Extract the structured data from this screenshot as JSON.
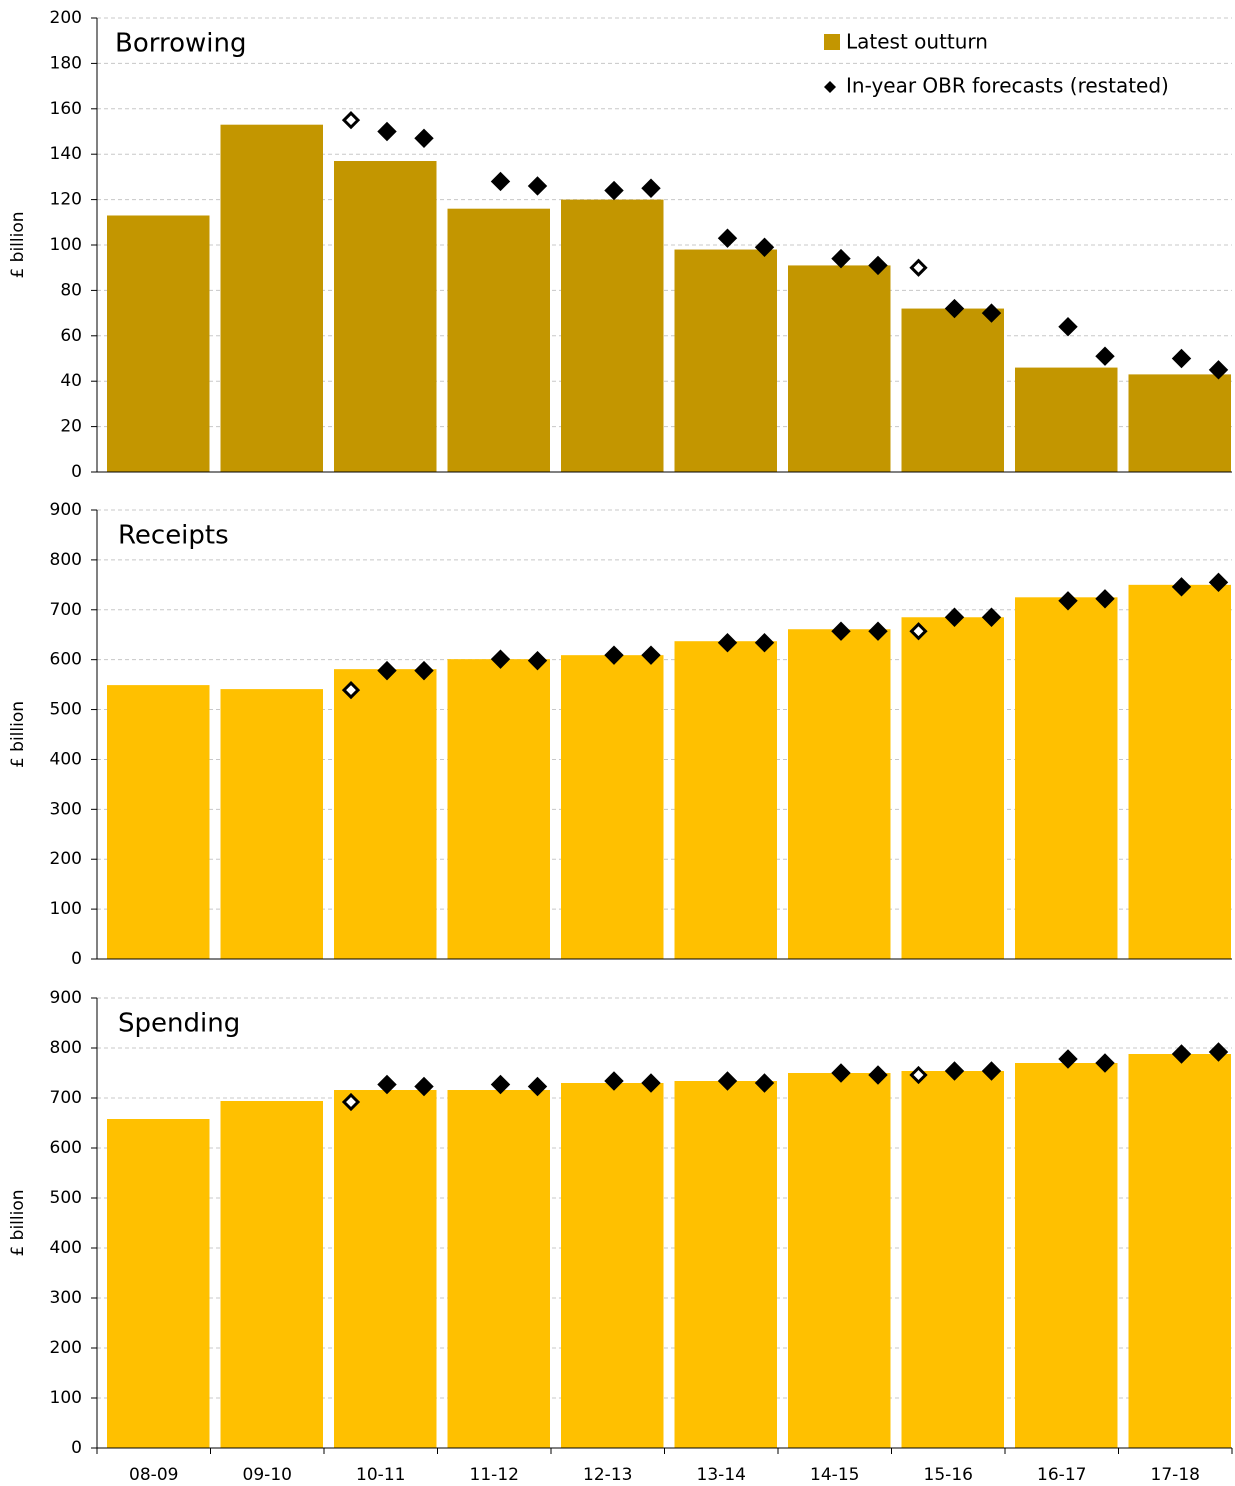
{
  "chart_data": [
    {
      "type": "bar",
      "title": "Borrowing",
      "ylabel": "£ billion",
      "legend": [
        "Latest outturn",
        "In-year OBR forecasts (restated)"
      ],
      "values": [
        113,
        153,
        137,
        116,
        120,
        98,
        91,
        72,
        46,
        43
      ],
      "color": "#c39600",
      "forecasts": [
        [
          null,
          null,
          null
        ],
        [
          null,
          null,
          null
        ],
        [
          155,
          150,
          147
        ],
        [
          null,
          128,
          126
        ],
        [
          null,
          124,
          125
        ],
        [
          null,
          103,
          99
        ],
        [
          null,
          94,
          91
        ],
        [
          90,
          72,
          70
        ],
        [
          null,
          64,
          51
        ],
        [
          null,
          50,
          45
        ]
      ],
      "forecast_color": "#000000",
      "ylim": [
        0,
        200
      ],
      "yticks": [
        0,
        20,
        40,
        60,
        80,
        100,
        120,
        140,
        160,
        180,
        200
      ],
      "grid": true
    },
    {
      "type": "bar",
      "title": "Receipts",
      "ylabel": "£ billion",
      "values": [
        549,
        541,
        581,
        601,
        609,
        637,
        661,
        685,
        725,
        750
      ],
      "color": "#ffc000",
      "forecasts": [
        [
          null,
          null,
          null
        ],
        [
          null,
          null,
          null
        ],
        [
          539,
          578,
          578
        ],
        [
          null,
          601,
          598
        ],
        [
          null,
          609,
          609
        ],
        [
          null,
          634,
          634
        ],
        [
          null,
          657,
          657
        ],
        [
          657,
          685,
          685
        ],
        [
          null,
          718,
          722
        ],
        [
          null,
          746,
          755
        ]
      ],
      "forecast_color": "#000000",
      "ylim": [
        0,
        900
      ],
      "yticks": [
        0,
        100,
        200,
        300,
        400,
        500,
        600,
        700,
        800,
        900
      ],
      "grid": true
    },
    {
      "type": "bar",
      "title": "Spending",
      "ylabel": "£ billion",
      "categories": [
        "08-09",
        "09-10",
        "10-11",
        "11-12",
        "12-13",
        "13-14",
        "14-15",
        "15-16",
        "16-17",
        "17-18"
      ],
      "values": [
        658,
        694,
        716,
        716,
        730,
        734,
        750,
        754,
        770,
        788
      ],
      "color": "#ffc000",
      "forecasts": [
        [
          null,
          null,
          null
        ],
        [
          null,
          null,
          null
        ],
        [
          692,
          727,
          723
        ],
        [
          null,
          727,
          723
        ],
        [
          null,
          734,
          730
        ],
        [
          null,
          734,
          730
        ],
        [
          null,
          750,
          746
        ],
        [
          746,
          754,
          754
        ],
        [
          null,
          778,
          770
        ],
        [
          null,
          788,
          792
        ]
      ],
      "forecast_color": "#000000",
      "ylim": [
        0,
        900
      ],
      "yticks": [
        0,
        100,
        200,
        300,
        400,
        500,
        600,
        700,
        800,
        900
      ],
      "grid": true
    }
  ]
}
